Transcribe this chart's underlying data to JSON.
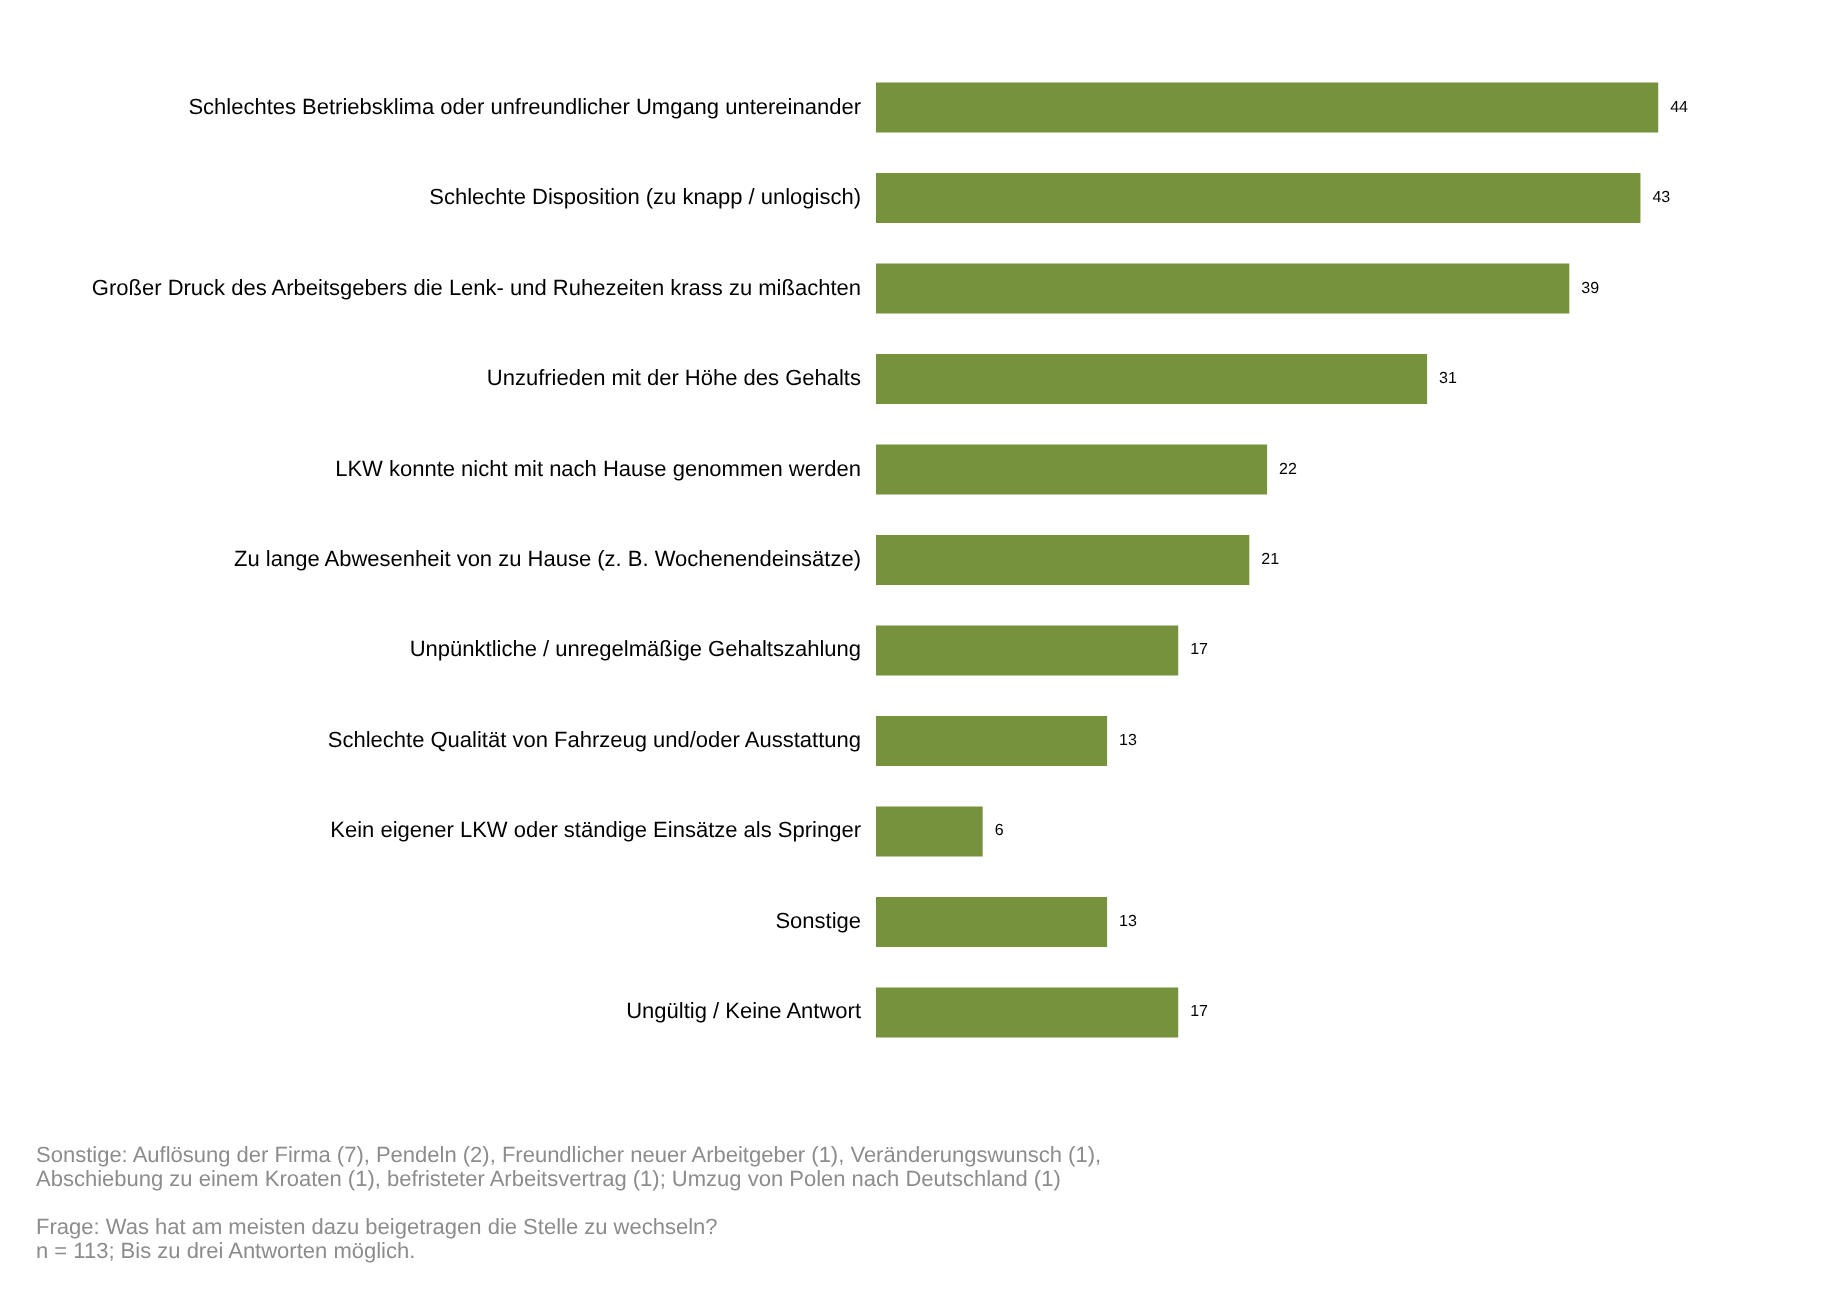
{
  "chart_data": {
    "type": "bar",
    "orientation": "horizontal",
    "categories": [
      "Schlechtes Betriebsklima oder unfreundlicher Umgang untereinander",
      "Schlechte Disposition (zu knapp / unlogisch)",
      "Großer Druck des Arbeitsgebers die Lenk- und Ruhezeiten krass zu mißachten",
      "Unzufrieden mit der Höhe des Gehalts",
      "LKW konnte nicht mit nach Hause genommen werden",
      "Zu lange Abwesenheit von zu Hause (z. B. Wochenendeinsätze)",
      "Unpünktliche / unregelmäßige Gehaltszahlung",
      "Schlechte Qualität von Fahrzeug und/oder Ausstattung",
      "Kein eigener LKW oder ständige Einsätze als Springer",
      "Sonstige",
      "Ungültig / Keine Antwort"
    ],
    "values": [
      44,
      43,
      39,
      31,
      22,
      21,
      17,
      13,
      6,
      13,
      17
    ],
    "color": "#77923c",
    "data_labels": true,
    "tick_labels": "y",
    "grid": false,
    "annotations": [
      "Sonstige: Auflösung der Firma (7), Pendeln (2), Freundlicher neuer Arbeitgeber (1),  Veränderungswunsch (1),",
      "Abschiebung zu einem Kroaten (1), befristeter Arbeitsvertrag (1);  Umzug von Polen nach Deutschland (1)",
      "Frage: Was hat am meisten dazu beigetragen die Stelle zu wechseln?",
      "n = 113; Bis zu drei Antworten möglich."
    ]
  }
}
